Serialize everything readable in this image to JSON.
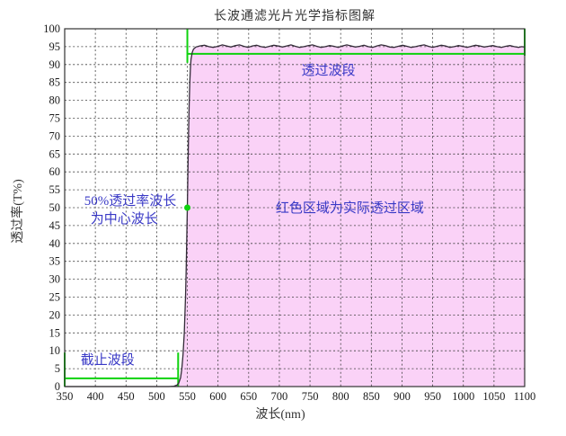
{
  "chart_data": {
    "type": "area",
    "title": "长波通滤光片光学指标图解",
    "xlabel": "波长(nm)",
    "ylabel": "透过率(T%)",
    "xlim": [
      350,
      1100
    ],
    "ylim": [
      0,
      100
    ],
    "x_ticks": [
      350,
      400,
      450,
      500,
      550,
      600,
      650,
      700,
      750,
      800,
      850,
      900,
      950,
      1000,
      1050,
      1100
    ],
    "y_ticks": [
      0,
      5,
      10,
      15,
      20,
      25,
      30,
      35,
      40,
      45,
      50,
      55,
      60,
      65,
      70,
      75,
      80,
      85,
      90,
      95,
      100
    ],
    "grid": "dashed",
    "legend": "none",
    "series": [
      {
        "name": "透过率曲线",
        "fill_under": true,
        "points": [
          [
            350,
            0
          ],
          [
            420,
            0
          ],
          [
            480,
            0
          ],
          [
            520,
            0
          ],
          [
            528,
            0.1
          ],
          [
            533,
            0.4
          ],
          [
            536,
            1
          ],
          [
            539,
            2.5
          ],
          [
            541,
            5
          ],
          [
            543,
            9
          ],
          [
            545,
            15
          ],
          [
            547,
            25
          ],
          [
            548,
            32
          ],
          [
            549,
            41
          ],
          [
            550,
            50
          ],
          [
            551,
            61
          ],
          [
            552,
            71
          ],
          [
            553,
            79
          ],
          [
            554,
            85
          ],
          [
            555,
            89
          ],
          [
            556,
            91.5
          ],
          [
            558,
            93.4
          ],
          [
            560,
            94.3
          ],
          [
            564,
            94.9
          ],
          [
            570,
            95.2
          ],
          [
            578,
            95.4
          ],
          [
            585,
            95.0
          ],
          [
            592,
            94.8
          ],
          [
            600,
            95.1
          ],
          [
            607,
            95.5
          ],
          [
            614,
            95.2
          ],
          [
            621,
            94.9
          ],
          [
            628,
            95.3
          ],
          [
            635,
            95.5
          ],
          [
            642,
            95.1
          ],
          [
            649,
            94.8
          ],
          [
            656,
            95.2
          ],
          [
            663,
            95.4
          ],
          [
            670,
            95.0
          ],
          [
            677,
            94.8
          ],
          [
            684,
            95.1
          ],
          [
            691,
            95.4
          ],
          [
            698,
            95.2
          ],
          [
            705,
            94.9
          ],
          [
            712,
            95.2
          ],
          [
            719,
            95.5
          ],
          [
            726,
            95.1
          ],
          [
            733,
            94.8
          ],
          [
            740,
            95.0
          ],
          [
            747,
            95.3
          ],
          [
            754,
            95.5
          ],
          [
            761,
            95.1
          ],
          [
            768,
            94.8
          ],
          [
            775,
            95.0
          ],
          [
            782,
            95.3
          ],
          [
            789,
            95.1
          ],
          [
            796,
            94.8
          ],
          [
            803,
            95.2
          ],
          [
            810,
            95.5
          ],
          [
            817,
            95.2
          ],
          [
            824,
            94.9
          ],
          [
            831,
            95.1
          ],
          [
            838,
            95.4
          ],
          [
            845,
            95.0
          ],
          [
            852,
            94.8
          ],
          [
            859,
            95.2
          ],
          [
            866,
            95.5
          ],
          [
            873,
            95.3
          ],
          [
            880,
            94.9
          ],
          [
            887,
            94.8
          ],
          [
            894,
            95.1
          ],
          [
            901,
            95.4
          ],
          [
            908,
            95.1
          ],
          [
            915,
            94.8
          ],
          [
            922,
            95.0
          ],
          [
            929,
            95.3
          ],
          [
            936,
            95.5
          ],
          [
            943,
            95.1
          ],
          [
            950,
            94.8
          ],
          [
            957,
            95.1
          ],
          [
            964,
            95.4
          ],
          [
            971,
            95.2
          ],
          [
            978,
            94.8
          ],
          [
            985,
            95.0
          ],
          [
            992,
            95.3
          ],
          [
            999,
            95.1
          ],
          [
            1006,
            94.8
          ],
          [
            1013,
            95.1
          ],
          [
            1020,
            95.4
          ],
          [
            1027,
            95.2
          ],
          [
            1034,
            94.9
          ],
          [
            1041,
            95.1
          ],
          [
            1048,
            95.3
          ],
          [
            1055,
            95.0
          ],
          [
            1062,
            94.8
          ],
          [
            1069,
            95.1
          ],
          [
            1076,
            95.3
          ],
          [
            1083,
            95.0
          ],
          [
            1090,
            94.8
          ],
          [
            1095,
            95.0
          ],
          [
            1100,
            94.9
          ]
        ]
      }
    ],
    "annotations": {
      "green_overlays": {
        "segments": [
          {
            "name": "pass-band-left-tick",
            "x1": 550,
            "y1": 100,
            "x2": 550,
            "y2": 90.5
          },
          {
            "name": "pass-band-line",
            "x1": 550,
            "y1": 93,
            "x2": 1100,
            "y2": 93
          },
          {
            "name": "pass-band-right-tick",
            "x1": 1100,
            "y1": 100,
            "x2": 1100,
            "y2": 92.5
          },
          {
            "name": "cutoff-left-tick",
            "x1": 350,
            "y1": 0,
            "x2": 350,
            "y2": 9.5
          },
          {
            "name": "cutoff-line",
            "x1": 350,
            "y1": 2.3,
            "x2": 535,
            "y2": 2.3
          },
          {
            "name": "cutoff-right-tick",
            "x1": 535,
            "y1": 0,
            "x2": 535,
            "y2": 9.5
          }
        ],
        "dot": {
          "name": "center-wavelength-dot",
          "x": 550,
          "y": 50,
          "radius": 3.5
        }
      },
      "texts": [
        {
          "name": "pass-band-label",
          "text": "透过波段",
          "x": 780,
          "y": 88.5
        },
        {
          "name": "pass-region-label",
          "text": "红色区域为实际透过区域",
          "x": 815,
          "y": 50
        },
        {
          "name": "center-wavelength-label-line1",
          "text": "50%透过率波长",
          "x": 457,
          "y": 52
        },
        {
          "name": "center-wavelength-label-line2",
          "text": "为中心波长",
          "x": 447,
          "y": 47
        },
        {
          "name": "cutoff-band-label",
          "text": "截止波段",
          "x": 420,
          "y": 7.5
        }
      ]
    },
    "colors": {
      "fill": "#FAD2F7",
      "curve": "#332B38",
      "green": "#0ED20E",
      "annotation_text": "#3939C6",
      "grid": "#3F3F3F",
      "border": "#333333",
      "tick_text": "#1A1A1A"
    }
  }
}
